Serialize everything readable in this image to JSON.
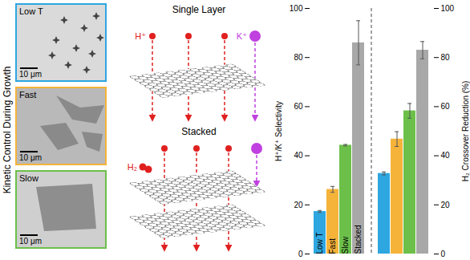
{
  "figure": {
    "side_label": "Kinetic Control During Growth",
    "images": [
      {
        "label": "Low T",
        "scale_bar": "10 μm",
        "color": "#2ea6e0"
      },
      {
        "label": "Fast",
        "scale_bar": "10 μm",
        "color": "#f5b33a"
      },
      {
        "label": "Slow",
        "scale_bar": "10 μm",
        "color": "#6cc04a"
      }
    ],
    "schematic": [
      {
        "title": "Single Layer",
        "labels": [
          "H⁺",
          "K⁺"
        ]
      },
      {
        "title": "Stacked",
        "labels": [
          "H₂"
        ]
      }
    ]
  },
  "chart_data": {
    "type": "bar",
    "categories": [
      "Low T",
      "Fast",
      "Slow",
      "Stacked"
    ],
    "colors": [
      "#2ea6e0",
      "#f5b33a",
      "#6cc04a",
      "#a8a8a8"
    ],
    "ylabel": "H⁺/K⁺ Selectivity",
    "y2label": "H₂ Crossover Reduction (%)",
    "series": [
      {
        "values": [
          17.3,
          26.3,
          44.3,
          86
        ],
        "errors": [
          0.4,
          1.2,
          0.3,
          9
        ]
      },
      {
        "axis": "y2",
        "values": [
          32.8,
          46.8,
          58.3,
          83
        ],
        "errors": [
          0.6,
          3,
          3,
          3.5
        ]
      }
    ],
    "ylim": [
      0,
      100
    ],
    "yticks": [
      0,
      20,
      40,
      60,
      80,
      100
    ],
    "y2lim": [
      0,
      100
    ],
    "y2ticks": [
      0,
      20,
      40,
      60,
      80,
      100
    ]
  }
}
